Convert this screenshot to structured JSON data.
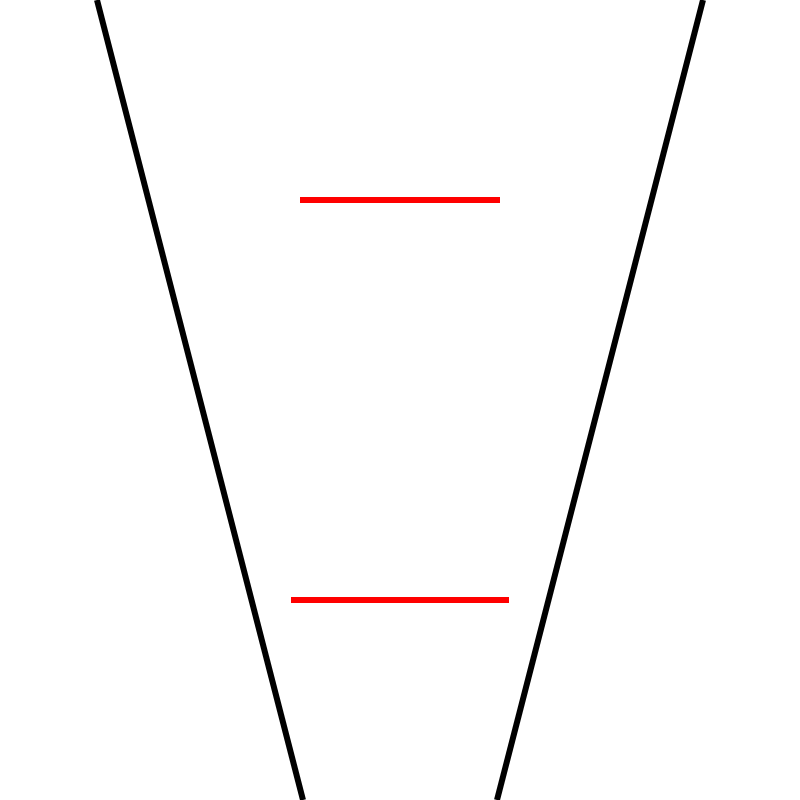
{
  "figure": {
    "type": "ponzo-illusion",
    "background_color": "#ffffff",
    "converging_line_color": "#000000",
    "comparison_line_color": "#ff0000",
    "comparison_lines": [
      {
        "name": "upper-red-line",
        "relative_length": 200
      },
      {
        "name": "lower-red-line",
        "relative_length": 218
      }
    ]
  }
}
